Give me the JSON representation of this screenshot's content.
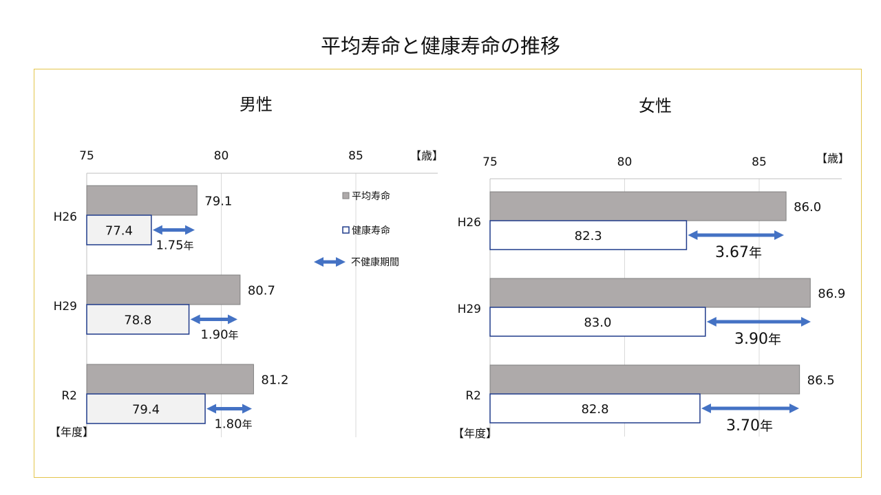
{
  "title": "平均寿命と健康寿命の推移",
  "colors": {
    "avg": "#aeaaaa",
    "avg_stroke": "#7f7f7f",
    "healthy_stroke": "#1f3a8a",
    "arrow": "#4472c4",
    "frame": "#e3c54a",
    "grid": "#d9d9d9"
  },
  "chart_data": [
    {
      "type": "bar",
      "orientation": "horizontal",
      "title": "男性",
      "x_unit": "【歳】",
      "y_unit": "【年度】",
      "xlim": [
        75,
        88
      ],
      "ticks": [
        "75",
        "80",
        "85"
      ],
      "categories": [
        "H26",
        "H29",
        "R2"
      ],
      "series": [
        {
          "name": "平均寿命",
          "values": [
            79.1,
            80.7,
            81.2
          ]
        },
        {
          "name": "健康寿命",
          "values": [
            77.4,
            78.8,
            79.4
          ]
        }
      ],
      "value_labels_avg": [
        "79.1",
        "80.7",
        "81.2"
      ],
      "value_labels_healthy": [
        "77.4",
        "78.8",
        "79.4"
      ],
      "gap_labels": [
        {
          "num": "1.75",
          "unit": "年"
        },
        {
          "num": "1.90",
          "unit": "年"
        },
        {
          "num": "1.80",
          "unit": "年"
        }
      ],
      "healthy_fill": "#f2f2f2",
      "legend": [
        {
          "key": "avg",
          "label": "平均寿命"
        },
        {
          "key": "healthy",
          "label": "健康寿命"
        },
        {
          "key": "arrow",
          "label": "不健康期間"
        }
      ]
    },
    {
      "type": "bar",
      "orientation": "horizontal",
      "title": "女性",
      "x_unit": "【歳】",
      "y_unit": "【年度】",
      "xlim": [
        75,
        88
      ],
      "ticks": [
        "75",
        "80",
        "85"
      ],
      "categories": [
        "H26",
        "H29",
        "R2"
      ],
      "series": [
        {
          "name": "平均寿命",
          "values": [
            86.0,
            86.9,
            86.5
          ]
        },
        {
          "name": "健康寿命",
          "values": [
            82.3,
            83.0,
            82.8
          ]
        }
      ],
      "value_labels_avg": [
        "86.0",
        "86.9",
        "86.5"
      ],
      "value_labels_healthy": [
        "82.3",
        "83.0",
        "82.8"
      ],
      "gap_labels": [
        {
          "num": "3.67",
          "unit": "年"
        },
        {
          "num": "3.90",
          "unit": "年"
        },
        {
          "num": "3.70",
          "unit": "年"
        }
      ],
      "healthy_fill": "#ffffff"
    }
  ]
}
